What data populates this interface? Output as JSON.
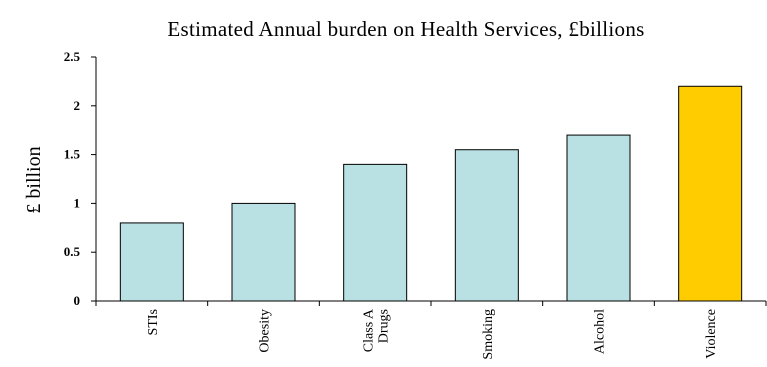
{
  "chart_data": {
    "type": "bar",
    "title": "Estimated Annual burden on Health Services, £billions",
    "ylabel": "£ billion",
    "xlabel": "",
    "ylim": [
      0,
      2.5
    ],
    "yticks": [
      0,
      0.5,
      1,
      1.5,
      2,
      2.5
    ],
    "ytick_labels": [
      "0",
      "0.5",
      "1",
      "1.5",
      "2",
      "2.5"
    ],
    "categories": [
      "STIs",
      "Obesity",
      "Class A Drugs",
      "Smoking",
      "Alcohol",
      "Violence"
    ],
    "category_lines": [
      [
        "STIs"
      ],
      [
        "Obesity"
      ],
      [
        "Class A",
        "Drugs"
      ],
      [
        "Smoking"
      ],
      [
        "Alcohol"
      ],
      [
        "Violence"
      ]
    ],
    "values": [
      0.8,
      1.0,
      1.4,
      1.55,
      1.7,
      2.2
    ],
    "colors": [
      "#b9e0e3",
      "#b9e0e3",
      "#b9e0e3",
      "#b9e0e3",
      "#b9e0e3",
      "#ffcc00"
    ],
    "grid": false,
    "legend": "none"
  }
}
